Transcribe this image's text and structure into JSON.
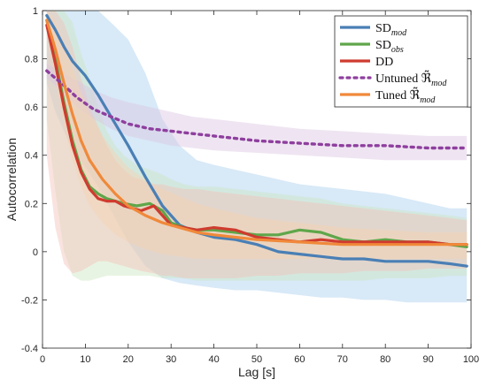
{
  "chart_data": {
    "type": "line",
    "title": "",
    "xlabel": "Lag [s]",
    "ylabel": "Autocorrelation",
    "xlim": [
      0,
      100
    ],
    "ylim": [
      -0.4,
      1
    ],
    "x_ticks": [
      0,
      10,
      20,
      30,
      40,
      50,
      60,
      70,
      80,
      90,
      100
    ],
    "y_ticks": [
      -0.4,
      -0.2,
      0,
      0.2,
      0.4,
      0.6,
      0.8,
      1
    ],
    "y_tick_labels": [
      "-0.4",
      "-0.2",
      "0",
      "0.2",
      "0.4",
      "0.6",
      "0.8",
      "1"
    ],
    "grid": false,
    "legend_position": "top-right",
    "series": [
      {
        "id": "sd_mod",
        "legend_base": "SD",
        "legend_sub": "mod",
        "legend_tilde": false,
        "color": "#4a7fb5",
        "band_color": "#a9cfee",
        "dashed": false,
        "x": [
          1,
          3,
          5,
          7,
          10,
          13,
          16,
          20,
          24,
          28,
          32,
          36,
          40,
          45,
          50,
          55,
          60,
          65,
          70,
          75,
          80,
          85,
          90,
          95,
          99
        ],
        "y": [
          0.98,
          0.92,
          0.85,
          0.79,
          0.73,
          0.65,
          0.56,
          0.44,
          0.31,
          0.19,
          0.11,
          0.08,
          0.06,
          0.05,
          0.03,
          0.0,
          -0.01,
          -0.02,
          -0.03,
          -0.03,
          -0.04,
          -0.04,
          -0.04,
          -0.05,
          -0.06
        ],
        "upper": [
          1.0,
          1.0,
          1.0,
          1.0,
          1.0,
          1.0,
          0.95,
          0.88,
          0.74,
          0.55,
          0.44,
          0.38,
          0.36,
          0.34,
          0.32,
          0.3,
          0.28,
          0.27,
          0.26,
          0.25,
          0.24,
          0.22,
          0.2,
          0.18,
          0.18
        ],
        "lower": [
          0.7,
          0.58,
          0.5,
          0.42,
          0.35,
          0.27,
          0.17,
          0.04,
          -0.06,
          -0.11,
          -0.13,
          -0.14,
          -0.15,
          -0.16,
          -0.16,
          -0.17,
          -0.18,
          -0.19,
          -0.19,
          -0.2,
          -0.2,
          -0.21,
          -0.21,
          -0.21,
          -0.21
        ]
      },
      {
        "id": "sd_obs",
        "legend_base": "SD",
        "legend_sub": "obs",
        "legend_tilde": false,
        "color": "#5fa64a",
        "band_color": "#cbe7c2",
        "dashed": false,
        "x": [
          1,
          3,
          5,
          7,
          9,
          11,
          13,
          15,
          17,
          19,
          22,
          25,
          28,
          30,
          33,
          36,
          40,
          45,
          50,
          55,
          60,
          65,
          70,
          75,
          80,
          85,
          90,
          95,
          99
        ],
        "y": [
          0.96,
          0.8,
          0.62,
          0.46,
          0.34,
          0.27,
          0.24,
          0.22,
          0.21,
          0.2,
          0.19,
          0.2,
          0.17,
          0.12,
          0.1,
          0.09,
          0.09,
          0.08,
          0.07,
          0.07,
          0.09,
          0.08,
          0.05,
          0.04,
          0.05,
          0.04,
          0.04,
          0.03,
          0.02
        ],
        "upper": [
          1.0,
          1.0,
          1.0,
          0.95,
          0.82,
          0.72,
          0.6,
          0.5,
          0.44,
          0.4,
          0.36,
          0.34,
          0.32,
          0.3,
          0.28,
          0.27,
          0.27,
          0.26,
          0.25,
          0.24,
          0.23,
          0.22,
          0.2,
          0.19,
          0.18,
          0.17,
          0.16,
          0.15,
          0.14
        ],
        "lower": [
          0.55,
          0.25,
          0.0,
          -0.1,
          -0.12,
          -0.12,
          -0.11,
          -0.1,
          -0.1,
          -0.1,
          -0.1,
          -0.1,
          -0.11,
          -0.11,
          -0.11,
          -0.12,
          -0.12,
          -0.12,
          -0.12,
          -0.12,
          -0.12,
          -0.12,
          -0.12,
          -0.12,
          -0.11,
          -0.11,
          -0.11,
          -0.1,
          -0.1
        ]
      },
      {
        "id": "dd",
        "legend_base": "DD",
        "legend_sub": "",
        "legend_tilde": false,
        "color": "#cf3b2f",
        "band_color": "#f4c0b7",
        "dashed": false,
        "x": [
          1,
          3,
          5,
          7,
          9,
          11,
          13,
          15,
          17,
          19,
          21,
          23,
          26,
          28,
          30,
          33,
          36,
          40,
          45,
          50,
          55,
          60,
          65,
          70,
          75,
          80,
          85,
          90,
          95,
          99
        ],
        "y": [
          0.94,
          0.78,
          0.6,
          0.44,
          0.33,
          0.26,
          0.22,
          0.21,
          0.21,
          0.19,
          0.18,
          0.17,
          0.19,
          0.15,
          0.11,
          0.1,
          0.09,
          0.1,
          0.09,
          0.06,
          0.05,
          0.04,
          0.05,
          0.04,
          0.04,
          0.04,
          0.04,
          0.04,
          0.03,
          0.03
        ],
        "upper": [
          1.0,
          1.0,
          0.95,
          0.85,
          0.72,
          0.6,
          0.52,
          0.44,
          0.38,
          0.34,
          0.31,
          0.3,
          0.28,
          0.28,
          0.27,
          0.26,
          0.26,
          0.25,
          0.24,
          0.23,
          0.22,
          0.21,
          0.2,
          0.19,
          0.18,
          0.17,
          0.16,
          0.15,
          0.14,
          0.13
        ],
        "lower": [
          0.4,
          0.1,
          -0.05,
          -0.09,
          -0.08,
          -0.06,
          -0.04,
          -0.04,
          -0.05,
          -0.06,
          -0.07,
          -0.08,
          -0.09,
          -0.1,
          -0.1,
          -0.11,
          -0.11,
          -0.11,
          -0.11,
          -0.1,
          -0.1,
          -0.09,
          -0.09,
          -0.09,
          -0.08,
          -0.08,
          -0.08,
          -0.07,
          -0.07,
          -0.07
        ]
      },
      {
        "id": "untuned",
        "legend_base": "Untuned ",
        "legend_sub": "mod",
        "legend_tilde": true,
        "color": "#8e3f9e",
        "band_color": "#dcc6e3",
        "dashed": true,
        "x": [
          1,
          3,
          5,
          8,
          12,
          16,
          20,
          25,
          30,
          35,
          40,
          50,
          60,
          70,
          80,
          90,
          99
        ],
        "y": [
          0.75,
          0.72,
          0.69,
          0.64,
          0.59,
          0.56,
          0.53,
          0.51,
          0.5,
          0.49,
          0.48,
          0.46,
          0.45,
          0.44,
          0.44,
          0.43,
          0.43
        ],
        "upper": [
          0.78,
          0.76,
          0.74,
          0.71,
          0.67,
          0.64,
          0.62,
          0.6,
          0.58,
          0.56,
          0.55,
          0.53,
          0.51,
          0.5,
          0.49,
          0.48,
          0.48
        ],
        "lower": [
          0.72,
          0.69,
          0.65,
          0.6,
          0.55,
          0.51,
          0.48,
          0.46,
          0.44,
          0.43,
          0.42,
          0.41,
          0.4,
          0.39,
          0.38,
          0.38,
          0.38
        ]
      },
      {
        "id": "tuned",
        "legend_base": "Tuned ",
        "legend_sub": "mod",
        "legend_tilde": true,
        "color": "#f0893a",
        "band_color": "#f7d3b2",
        "dashed": false,
        "x": [
          1,
          3,
          5,
          7,
          9,
          11,
          14,
          17,
          20,
          24,
          28,
          32,
          36,
          40,
          45,
          50,
          60,
          70,
          80,
          90,
          99
        ],
        "y": [
          0.96,
          0.84,
          0.7,
          0.57,
          0.46,
          0.38,
          0.3,
          0.24,
          0.19,
          0.15,
          0.12,
          0.1,
          0.08,
          0.07,
          0.06,
          0.05,
          0.04,
          0.03,
          0.03,
          0.03,
          0.03
        ],
        "upper": [
          1.0,
          0.96,
          0.87,
          0.76,
          0.66,
          0.58,
          0.48,
          0.41,
          0.35,
          0.3,
          0.26,
          0.23,
          0.2,
          0.18,
          0.16,
          0.14,
          0.12,
          0.1,
          0.09,
          0.08,
          0.08
        ],
        "lower": [
          0.92,
          0.72,
          0.52,
          0.38,
          0.27,
          0.19,
          0.12,
          0.07,
          0.04,
          0.01,
          -0.01,
          -0.02,
          -0.03,
          -0.03,
          -0.03,
          -0.03,
          -0.03,
          -0.03,
          -0.03,
          -0.03,
          -0.03
        ]
      }
    ]
  }
}
